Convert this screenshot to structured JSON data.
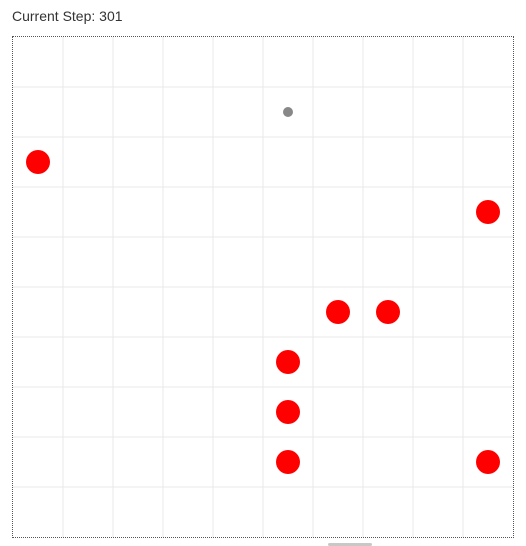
{
  "status": {
    "step_label": "Current Step: 301"
  },
  "grid": {
    "columns": 10,
    "rows": 10,
    "line_color": "#e8e8e8",
    "border_color": "#555555"
  },
  "agents": [
    {
      "col": 0,
      "row": 2
    },
    {
      "col": 9,
      "row": 3
    },
    {
      "col": 6,
      "row": 5
    },
    {
      "col": 7,
      "row": 5
    },
    {
      "col": 5,
      "row": 6
    },
    {
      "col": 5,
      "row": 7
    },
    {
      "col": 5,
      "row": 8
    },
    {
      "col": 9,
      "row": 8
    }
  ],
  "agent_color": "#ff0000",
  "target": {
    "col": 5,
    "row": 1,
    "color": "#888888"
  }
}
